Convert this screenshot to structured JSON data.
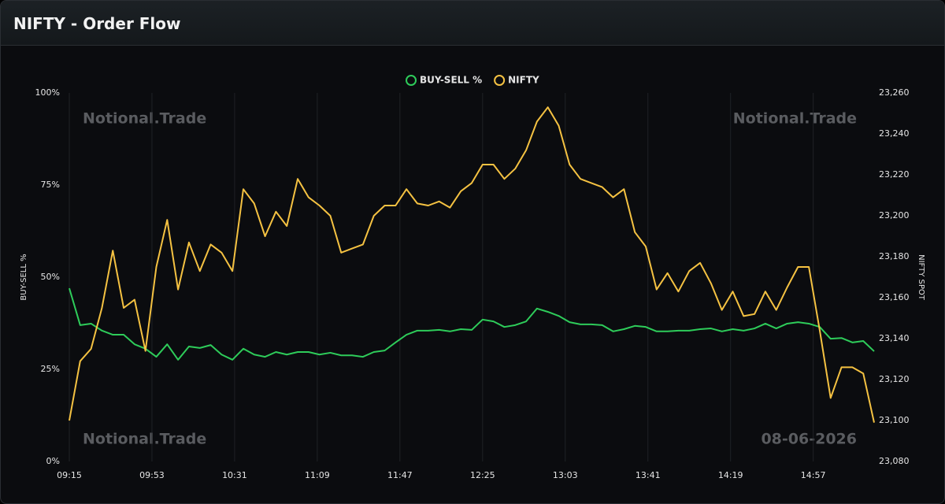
{
  "title": "NIFTY - Order Flow",
  "watermarks": [
    "Notional.Trade",
    "Notional.Trade",
    "Notional.Trade",
    "08-06-2026"
  ],
  "chart_data": {
    "type": "line",
    "ylabel": "BUY-SELL %",
    "y2label": "NIFTY SPOT",
    "x": [
      555,
      560,
      565,
      570,
      575,
      580,
      585,
      590,
      595,
      600,
      605,
      610,
      615,
      620,
      625,
      630,
      635,
      640,
      645,
      650,
      655,
      660,
      665,
      670,
      675,
      680,
      685,
      690,
      695,
      700,
      705,
      710,
      715,
      720,
      725,
      730,
      735,
      740,
      745,
      750,
      755,
      760,
      765,
      770,
      775,
      780,
      785,
      790,
      795,
      800,
      805,
      810,
      815,
      820,
      825,
      830,
      835,
      840,
      845,
      850,
      855,
      860,
      865,
      870,
      875,
      880,
      885,
      890,
      895,
      900,
      905,
      910,
      915,
      920,
      925
    ],
    "xlim": [
      555,
      925
    ],
    "xticks": [
      {
        "value": 555,
        "label": "09:15"
      },
      {
        "value": 593,
        "label": "09:53"
      },
      {
        "value": 631,
        "label": "10:31"
      },
      {
        "value": 669,
        "label": "11:09"
      },
      {
        "value": 707,
        "label": "11:47"
      },
      {
        "value": 745,
        "label": "12:25"
      },
      {
        "value": 783,
        "label": "13:03"
      },
      {
        "value": 821,
        "label": "13:41"
      },
      {
        "value": 859,
        "label": "14:19"
      },
      {
        "value": 897,
        "label": "14:57"
      }
    ],
    "ylim": [
      0,
      100
    ],
    "yticks": [
      {
        "value": 0,
        "label": "0%"
      },
      {
        "value": 25,
        "label": "25%"
      },
      {
        "value": 50,
        "label": "50%"
      },
      {
        "value": 75,
        "label": "75%"
      },
      {
        "value": 100,
        "label": "100%"
      }
    ],
    "y2lim": [
      23080,
      23260
    ],
    "y2ticks": [
      {
        "value": 23080,
        "label": "23,080"
      },
      {
        "value": 23100,
        "label": "23,100"
      },
      {
        "value": 23120,
        "label": "23,120"
      },
      {
        "value": 23140,
        "label": "23,140"
      },
      {
        "value": 23160,
        "label": "23,160"
      },
      {
        "value": 23180,
        "label": "23,180"
      },
      {
        "value": 23200,
        "label": "23,200"
      },
      {
        "value": 23220,
        "label": "23,220"
      },
      {
        "value": 23240,
        "label": "23,240"
      },
      {
        "value": 23260,
        "label": "23,260"
      }
    ],
    "grid": true,
    "series": [
      {
        "name": "BUY-SELL %",
        "color": "#2ecc5a",
        "values": [
          47,
          37,
          37.4,
          35.5,
          34.4,
          34.4,
          31.8,
          30.6,
          28.4,
          31.8,
          27.6,
          31.2,
          30.8,
          31.6,
          29,
          27.6,
          30.6,
          29,
          28.4,
          29.7,
          29,
          29.7,
          29.7,
          29,
          29.5,
          28.8,
          28.8,
          28.4,
          29.7,
          30.1,
          32.3,
          34.4,
          35.5,
          35.5,
          35.7,
          35.3,
          35.9,
          35.7,
          38.5,
          38,
          36.5,
          37,
          38,
          41.5,
          40.6,
          39.5,
          37.8,
          37.2,
          37.2,
          37,
          35.3,
          35.9,
          36.8,
          36.5,
          35.3,
          35.3,
          35.5,
          35.5,
          35.9,
          36.1,
          35.3,
          35.9,
          35.5,
          36.1,
          37.4,
          36.1,
          37.4,
          37.8,
          37.4,
          36.5,
          33.3,
          33.5,
          32.3,
          32.7,
          29.9
        ]
      },
      {
        "name": "NIFTY",
        "color": "#f5c242",
        "axis": "y2",
        "values": [
          23100,
          23129,
          23135,
          23155,
          23183,
          23155,
          23159,
          23134,
          23175,
          23198,
          23164,
          23187,
          23173,
          23186,
          23182,
          23173,
          23213,
          23206,
          23190,
          23202,
          23195,
          23218,
          23209,
          23205,
          23200,
          23182,
          23184,
          23186,
          23200,
          23205,
          23205,
          23213,
          23206,
          23205,
          23207,
          23204,
          23212,
          23216,
          23225,
          23225,
          23218,
          23223,
          23232,
          23246,
          23253,
          23244,
          23225,
          23218,
          23216,
          23214,
          23209,
          23213,
          23192,
          23185,
          23164,
          23172,
          23163,
          23173,
          23177,
          23167,
          23154,
          23163,
          23151,
          23152,
          23163,
          23154,
          23165,
          23175,
          23175,
          23144,
          23111,
          23126,
          23126,
          23123,
          23099
        ]
      }
    ]
  }
}
